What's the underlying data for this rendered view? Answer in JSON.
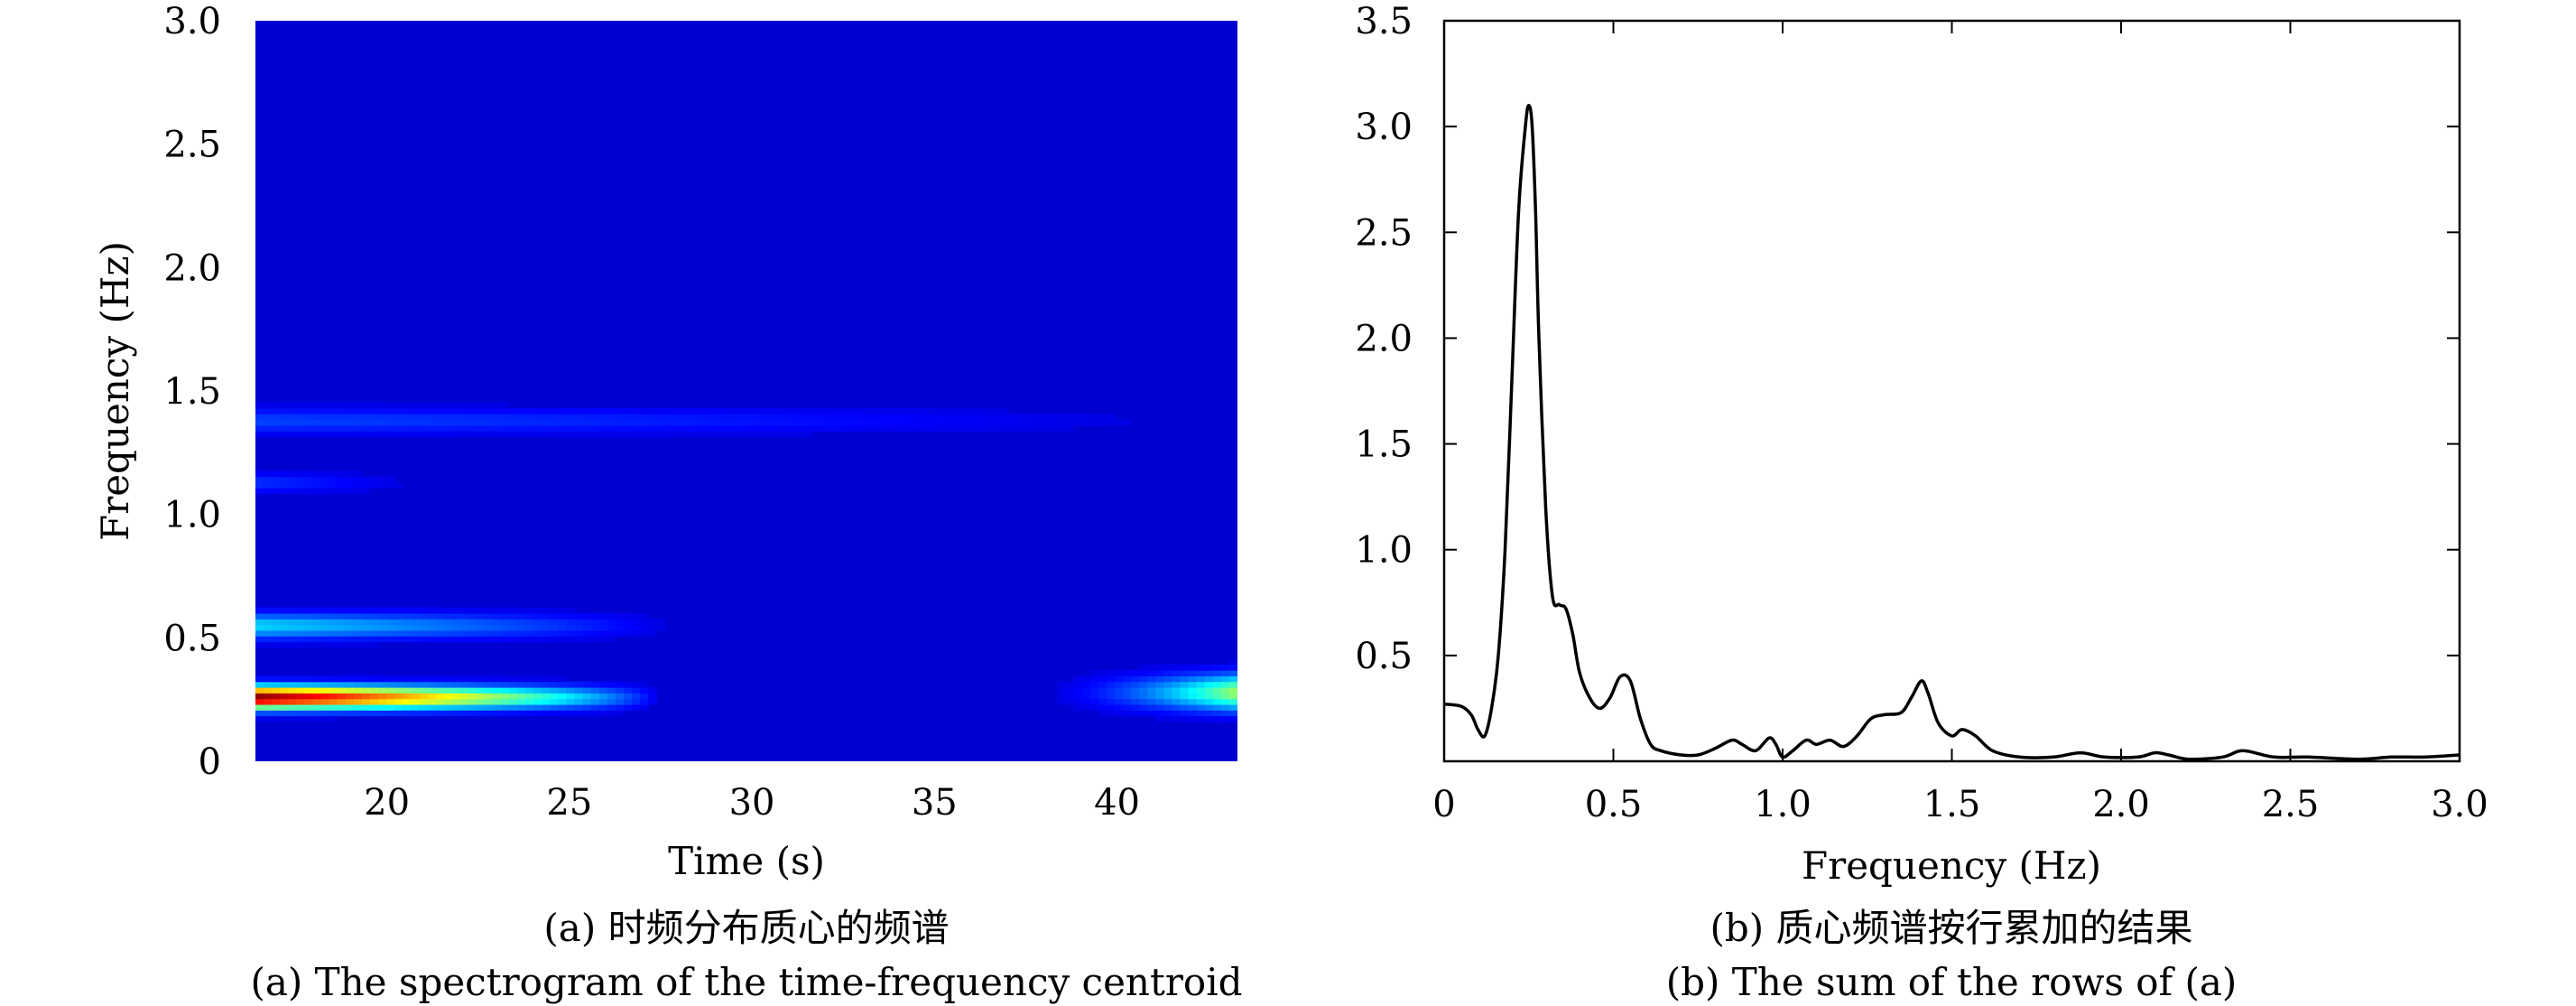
{
  "chart_data": [
    {
      "type": "heatmap",
      "xlabel": "Time (s)",
      "ylabel": "Frequency (Hz)",
      "xlim": [
        16.4,
        43.3
      ],
      "ylim": [
        0,
        3.0
      ],
      "x_ticks": [
        "20",
        "25",
        "30",
        "35",
        "40"
      ],
      "y_ticks": [
        "0",
        "0.5",
        "1.0",
        "1.5",
        "2.0",
        "2.5",
        "3.0"
      ],
      "colormap": "jet",
      "background_color": "#00008f",
      "features": [
        {
          "name": "main-ridge",
          "freq": 0.26,
          "t_start": 16.4,
          "t_end": 27.5,
          "intensity": 1.0,
          "freq_width": 0.045
        },
        {
          "name": "late-ridge",
          "freq": 0.28,
          "t_start": 37.0,
          "t_end": 43.3,
          "intensity": 0.5,
          "freq_width": 0.07
        },
        {
          "name": "band-0.55",
          "freq": 0.55,
          "t_start": 16.4,
          "t_end": 28.0,
          "intensity": 0.28,
          "freq_width": 0.05
        },
        {
          "name": "band-1.4",
          "freq": 1.38,
          "t_start": 16.4,
          "t_end": 43.3,
          "intensity": 0.12,
          "freq_width": 0.05
        },
        {
          "name": "band-1.13",
          "freq": 1.13,
          "t_start": 16.4,
          "t_end": 21.0,
          "intensity": 0.1,
          "freq_width": 0.04
        }
      ],
      "caption_cn": "(a) 时频分布质心的频谱",
      "caption_en": "(a) The spectrogram of the time-frequency centroid"
    },
    {
      "type": "line",
      "xlabel": "Frequency (Hz)",
      "ylabel": "",
      "xlim": [
        0,
        3.0
      ],
      "ylim": [
        0,
        3.5
      ],
      "x_ticks": [
        "0",
        "0.5",
        "1.0",
        "1.5",
        "2.0",
        "2.5",
        "3.0"
      ],
      "y_ticks": [
        "0.5",
        "1.0",
        "1.5",
        "2.0",
        "2.5",
        "3.0",
        "3.5"
      ],
      "series": [
        {
          "color": "#000000",
          "x": [
            0,
            0.05,
            0.08,
            0.1,
            0.12,
            0.14,
            0.16,
            0.18,
            0.2,
            0.22,
            0.24,
            0.25,
            0.26,
            0.27,
            0.28,
            0.3,
            0.32,
            0.34,
            0.36,
            0.38,
            0.4,
            0.43,
            0.46,
            0.49,
            0.52,
            0.55,
            0.58,
            0.61,
            0.64,
            0.7,
            0.75,
            0.8,
            0.85,
            0.88,
            0.92,
            0.96,
            0.98,
            1.0,
            1.03,
            1.07,
            1.1,
            1.14,
            1.18,
            1.22,
            1.26,
            1.3,
            1.35,
            1.38,
            1.41,
            1.43,
            1.46,
            1.5,
            1.53,
            1.57,
            1.62,
            1.7,
            1.8,
            1.88,
            1.95,
            2.05,
            2.1,
            2.14,
            2.2,
            2.3,
            2.36,
            2.45,
            2.55,
            2.7,
            2.8,
            2.9,
            3.0
          ],
          "y": [
            0.27,
            0.26,
            0.22,
            0.15,
            0.12,
            0.25,
            0.5,
            1.0,
            1.8,
            2.6,
            3.0,
            3.1,
            3.0,
            2.6,
            2.0,
            1.2,
            0.78,
            0.74,
            0.72,
            0.6,
            0.42,
            0.3,
            0.25,
            0.3,
            0.4,
            0.38,
            0.2,
            0.08,
            0.05,
            0.03,
            0.03,
            0.06,
            0.1,
            0.08,
            0.05,
            0.11,
            0.08,
            0.02,
            0.05,
            0.1,
            0.08,
            0.1,
            0.07,
            0.12,
            0.2,
            0.22,
            0.23,
            0.3,
            0.38,
            0.32,
            0.18,
            0.12,
            0.15,
            0.12,
            0.05,
            0.02,
            0.02,
            0.04,
            0.02,
            0.02,
            0.04,
            0.03,
            0.01,
            0.02,
            0.05,
            0.02,
            0.02,
            0.01,
            0.02,
            0.02,
            0.03
          ]
        }
      ],
      "caption_cn": "(b) 质心频谱按行累加的结果",
      "caption_en": "(b) The sum of the rows of (a)"
    }
  ]
}
